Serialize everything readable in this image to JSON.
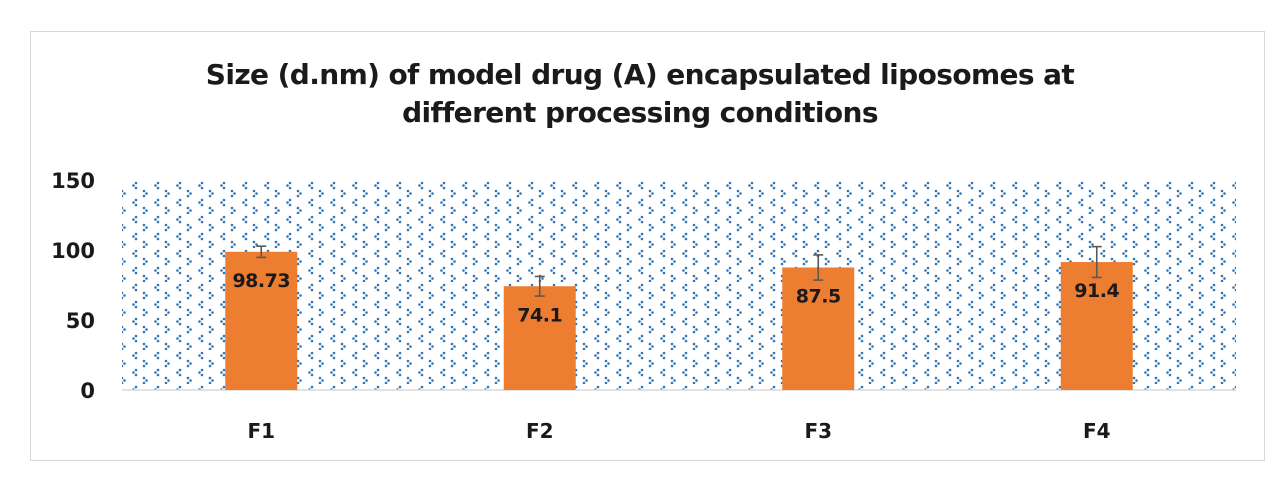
{
  "chart_data": {
    "type": "bar",
    "title": "Size (d.nm) of model drug (A) encapsulated liposomes at different processing conditions",
    "title_lines": [
      "Size (d.nm) of model drug (A) encapsulated liposomes at",
      "different processing conditions"
    ],
    "xlabel": "",
    "ylabel": "",
    "categories": [
      "F1",
      "F2",
      "F3",
      "F4"
    ],
    "values": [
      98.73,
      74.1,
      87.5,
      91.4
    ],
    "data_labels": [
      "98.73",
      "74.1",
      "87.5",
      "91.4"
    ],
    "error": [
      4,
      7,
      9,
      11
    ],
    "ylim": [
      0,
      150
    ],
    "yticks": [
      0,
      50,
      100,
      150
    ],
    "ytick_labels": [
      "0",
      "50",
      "100",
      "150"
    ],
    "grid": false,
    "legend": "none",
    "colors": {
      "bar": "#ed7d31",
      "error_bar": "#595959",
      "pattern_dot": "#2e75b6",
      "axis": "#d9d9d9",
      "text": "#1a1a1a"
    }
  }
}
